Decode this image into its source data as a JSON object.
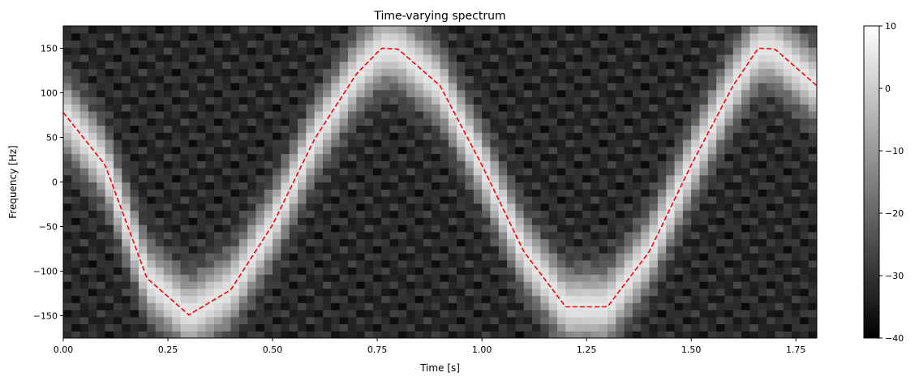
{
  "chart_data": {
    "type": "heatmap",
    "title": "Time-varying spectrum",
    "xlabel": "Time [s]",
    "ylabel": "Frequency [Hz]",
    "xlim": [
      0,
      1.8
    ],
    "ylim": [
      -175,
      175
    ],
    "xticks": [
      0.0,
      0.25,
      0.5,
      0.75,
      1.0,
      1.25,
      1.5,
      1.75
    ],
    "xtick_labels": [
      "0.00",
      "0.25",
      "0.50",
      "0.75",
      "1.00",
      "1.25",
      "1.50",
      "1.75"
    ],
    "yticks": [
      150,
      100,
      50,
      0,
      -50,
      -100,
      -150
    ],
    "ytick_labels": [
      "150",
      "100",
      "50",
      "0",
      "−50",
      "−100",
      "−150"
    ],
    "colormap": "gray",
    "colorbar": {
      "range": [
        -40,
        10
      ],
      "ticks": [
        10,
        0,
        -10,
        -20,
        -30,
        -40
      ],
      "tick_labels": [
        "10",
        "0",
        "−10",
        "−20",
        "−30",
        "−40"
      ]
    },
    "heatmap_ridge": {
      "description": "bright band following the instantaneous frequency",
      "peak_level_db": 5,
      "background_level_db": -38
    },
    "series": [
      {
        "style": "dashed",
        "color": "#ff0000",
        "x": [
          0.0,
          0.1,
          0.2,
          0.3,
          0.4,
          0.5,
          0.6,
          0.7,
          0.76,
          0.8,
          0.9,
          1.0,
          1.1,
          1.2,
          1.3,
          1.4,
          1.5,
          1.6,
          1.66,
          1.7,
          1.8
        ],
        "y": [
          78,
          19,
          -108,
          -149,
          -121,
          -48,
          48,
          121,
          150,
          149,
          108,
          19,
          -78,
          -140,
          -140,
          -78,
          19,
          108,
          150,
          149,
          108
        ]
      }
    ]
  }
}
